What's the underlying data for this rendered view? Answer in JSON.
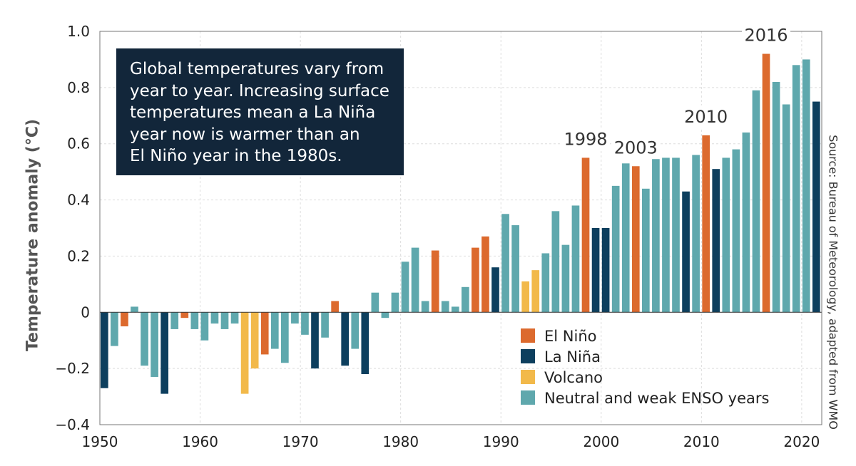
{
  "chart_data": {
    "type": "bar",
    "title": "",
    "xlabel": "",
    "ylabel": "Temperature anomaly (°C)",
    "source": "Source: Bureau of Meteorology, adapted from WMO",
    "callout": [
      "Global temperatures vary from",
      "year to year. Increasing surface",
      "temperatures mean a La Niña",
      "year now is warmer than an",
      "El Niño year in the 1980s."
    ],
    "xlim": [
      1950,
      2022
    ],
    "ylim": [
      -0.4,
      1.0
    ],
    "x_ticks": [
      1950,
      1960,
      1970,
      1980,
      1990,
      2000,
      2010,
      2020
    ],
    "y_ticks": [
      {
        "value": -0.4,
        "label": "−0.4"
      },
      {
        "value": -0.2,
        "label": "−0.2"
      },
      {
        "value": 0,
        "label": "0"
      },
      {
        "value": 0.2,
        "label": "0.2"
      },
      {
        "value": 0.4,
        "label": "0.4"
      },
      {
        "value": 0.6,
        "label": "0.6"
      },
      {
        "value": 0.8,
        "label": "0.8"
      },
      {
        "value": 1.0,
        "label": "1.0"
      }
    ],
    "categories": {
      "E": {
        "name": "El Niño",
        "color": "#dc6a2e"
      },
      "L": {
        "name": "La Niña",
        "color": "#0d3f5e"
      },
      "V": {
        "name": "Volcano",
        "color": "#f2b94a"
      },
      "N": {
        "name": "Neutral and weak ENSO years",
        "color": "#5fa8ad"
      }
    },
    "legend_order": [
      "E",
      "L",
      "V",
      "N"
    ],
    "legend_position": "bottom-right",
    "annotations": [
      {
        "year": 1998,
        "label": "1998"
      },
      {
        "year": 2003,
        "label": "2003"
      },
      {
        "year": 2010,
        "label": "2010"
      },
      {
        "year": 2016,
        "label": "2016"
      }
    ],
    "bars": [
      {
        "year": 1950,
        "value": -0.27,
        "cat": "L"
      },
      {
        "year": 1951,
        "value": -0.12,
        "cat": "N"
      },
      {
        "year": 1952,
        "value": -0.05,
        "cat": "E"
      },
      {
        "year": 1953,
        "value": 0.02,
        "cat": "N"
      },
      {
        "year": 1954,
        "value": -0.19,
        "cat": "N"
      },
      {
        "year": 1955,
        "value": -0.23,
        "cat": "N"
      },
      {
        "year": 1956,
        "value": -0.29,
        "cat": "L"
      },
      {
        "year": 1957,
        "value": -0.06,
        "cat": "N"
      },
      {
        "year": 1958,
        "value": -0.02,
        "cat": "E"
      },
      {
        "year": 1959,
        "value": -0.06,
        "cat": "N"
      },
      {
        "year": 1960,
        "value": -0.1,
        "cat": "N"
      },
      {
        "year": 1961,
        "value": -0.04,
        "cat": "N"
      },
      {
        "year": 1962,
        "value": -0.06,
        "cat": "N"
      },
      {
        "year": 1963,
        "value": -0.04,
        "cat": "N"
      },
      {
        "year": 1964,
        "value": -0.29,
        "cat": "V"
      },
      {
        "year": 1965,
        "value": -0.2,
        "cat": "V"
      },
      {
        "year": 1966,
        "value": -0.15,
        "cat": "E"
      },
      {
        "year": 1967,
        "value": -0.13,
        "cat": "N"
      },
      {
        "year": 1968,
        "value": -0.18,
        "cat": "N"
      },
      {
        "year": 1969,
        "value": -0.04,
        "cat": "N"
      },
      {
        "year": 1970,
        "value": -0.08,
        "cat": "N"
      },
      {
        "year": 1971,
        "value": -0.2,
        "cat": "L"
      },
      {
        "year": 1972,
        "value": -0.09,
        "cat": "N"
      },
      {
        "year": 1973,
        "value": 0.04,
        "cat": "E"
      },
      {
        "year": 1974,
        "value": -0.19,
        "cat": "L"
      },
      {
        "year": 1975,
        "value": -0.13,
        "cat": "N"
      },
      {
        "year": 1976,
        "value": -0.22,
        "cat": "L"
      },
      {
        "year": 1977,
        "value": 0.07,
        "cat": "N"
      },
      {
        "year": 1978,
        "value": -0.02,
        "cat": "N"
      },
      {
        "year": 1979,
        "value": 0.07,
        "cat": "N"
      },
      {
        "year": 1980,
        "value": 0.18,
        "cat": "N"
      },
      {
        "year": 1981,
        "value": 0.23,
        "cat": "N"
      },
      {
        "year": 1982,
        "value": 0.04,
        "cat": "N"
      },
      {
        "year": 1983,
        "value": 0.22,
        "cat": "E"
      },
      {
        "year": 1984,
        "value": 0.04,
        "cat": "N"
      },
      {
        "year": 1985,
        "value": 0.02,
        "cat": "N"
      },
      {
        "year": 1986,
        "value": 0.09,
        "cat": "N"
      },
      {
        "year": 1987,
        "value": 0.23,
        "cat": "E"
      },
      {
        "year": 1988,
        "value": 0.27,
        "cat": "E"
      },
      {
        "year": 1989,
        "value": 0.16,
        "cat": "L"
      },
      {
        "year": 1990,
        "value": 0.35,
        "cat": "N"
      },
      {
        "year": 1991,
        "value": 0.31,
        "cat": "N"
      },
      {
        "year": 1992,
        "value": 0.11,
        "cat": "V"
      },
      {
        "year": 1993,
        "value": 0.15,
        "cat": "V"
      },
      {
        "year": 1994,
        "value": 0.21,
        "cat": "N"
      },
      {
        "year": 1995,
        "value": 0.36,
        "cat": "N"
      },
      {
        "year": 1996,
        "value": 0.24,
        "cat": "N"
      },
      {
        "year": 1997,
        "value": 0.38,
        "cat": "N"
      },
      {
        "year": 1998,
        "value": 0.55,
        "cat": "E"
      },
      {
        "year": 1999,
        "value": 0.3,
        "cat": "L"
      },
      {
        "year": 2000,
        "value": 0.3,
        "cat": "L"
      },
      {
        "year": 2001,
        "value": 0.45,
        "cat": "N"
      },
      {
        "year": 2002,
        "value": 0.53,
        "cat": "N"
      },
      {
        "year": 2003,
        "value": 0.52,
        "cat": "E"
      },
      {
        "year": 2004,
        "value": 0.44,
        "cat": "N"
      },
      {
        "year": 2005,
        "value": 0.59,
        "cat": "N"
      },
      {
        "year": 2006,
        "value": 0.55,
        "cat": "N"
      },
      {
        "year": 2007,
        "value": 0.55,
        "cat": "N"
      },
      {
        "year": 2008,
        "value": 0.43,
        "cat": "L"
      },
      {
        "year": 2009,
        "value": 0.56,
        "cat": "N"
      },
      {
        "year": 2010,
        "value": 0.63,
        "cat": "E"
      },
      {
        "year": 2011,
        "value": 0.51,
        "cat": "L"
      },
      {
        "year": 2012,
        "value": 0.55,
        "cat": "N"
      },
      {
        "year": 2013,
        "value": 0.58,
        "cat": "N"
      },
      {
        "year": 2014,
        "value": 0.64,
        "cat": "N"
      },
      {
        "year": 2015,
        "value": 0.79,
        "cat": "N"
      },
      {
        "year": 2016,
        "value": 0.92,
        "cat": "E"
      },
      {
        "year": 2017,
        "value": 0.82,
        "cat": "N"
      },
      {
        "year": 2018,
        "value": 0.74,
        "cat": "N"
      },
      {
        "year": 2019,
        "value": 0.88,
        "cat": "N"
      },
      {
        "year": 2020,
        "value": 0.9,
        "cat": "N"
      },
      {
        "year": 2021,
        "value": 0.75,
        "cat": "L"
      }
    ]
  }
}
